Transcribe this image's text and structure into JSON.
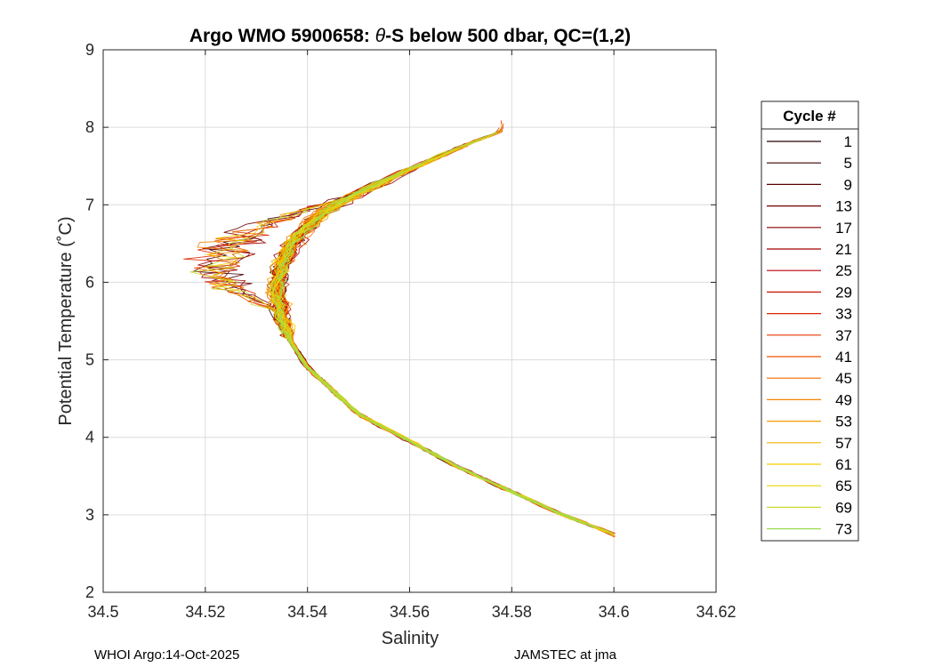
{
  "chart_data": {
    "type": "line",
    "title_prefix": "Argo WMO 5900658: ",
    "title_theta": "θ",
    "title_suffix": "-S below 500 dbar,  QC=(1,2)",
    "xlabel": "Salinity",
    "ylabel": "Potential Temperature (˚C)",
    "xlim": [
      34.5,
      34.62
    ],
    "ylim": [
      2,
      9
    ],
    "xticks": [
      34.5,
      34.52,
      34.54,
      34.56,
      34.58,
      34.6,
      34.62
    ],
    "xtick_labels": [
      "34.5",
      "34.52",
      "34.54",
      "34.56",
      "34.58",
      "34.6",
      "34.62"
    ],
    "yticks": [
      2,
      3,
      4,
      5,
      6,
      7,
      8,
      9
    ],
    "ytick_labels": [
      "2",
      "3",
      "4",
      "5",
      "6",
      "7",
      "8",
      "9"
    ],
    "grid": true,
    "legend": {
      "title": "Cycle #",
      "placement": "outside-right",
      "entries": [
        "1",
        "5",
        "9",
        "13",
        "17",
        "21",
        "25",
        "29",
        "33",
        "37",
        "41",
        "45",
        "49",
        "53",
        "57",
        "61",
        "65",
        "69",
        "73"
      ],
      "colors": [
        "#2a0000",
        "#3f0000",
        "#560000",
        "#6e0000",
        "#870000",
        "#a00000",
        "#b80000",
        "#cc1200",
        "#dd2400",
        "#e83a00",
        "#ee5400",
        "#f26c00",
        "#f48400",
        "#f59c00",
        "#f6b400",
        "#f5cc00",
        "#e6d600",
        "#c8da30",
        "#9ada50"
      ]
    },
    "series_shape": {
      "description": "Theta-S profiles per cycle (approximate mean shape)",
      "salinity": [
        34.6,
        34.59,
        34.58,
        34.57,
        34.56,
        34.55,
        34.545,
        34.54,
        34.537,
        34.535,
        34.534,
        34.535,
        34.538,
        34.543,
        34.55,
        34.558,
        34.565,
        34.572,
        34.578
      ],
      "temperature": [
        2.75,
        3.0,
        3.3,
        3.6,
        3.95,
        4.3,
        4.6,
        4.9,
        5.2,
        5.55,
        5.9,
        6.25,
        6.6,
        6.9,
        7.15,
        7.4,
        7.6,
        7.8,
        7.95
      ]
    }
  },
  "footer": {
    "left": "WHOI Argo:14-Oct-2025",
    "right": "JAMSTEC at jma"
  }
}
